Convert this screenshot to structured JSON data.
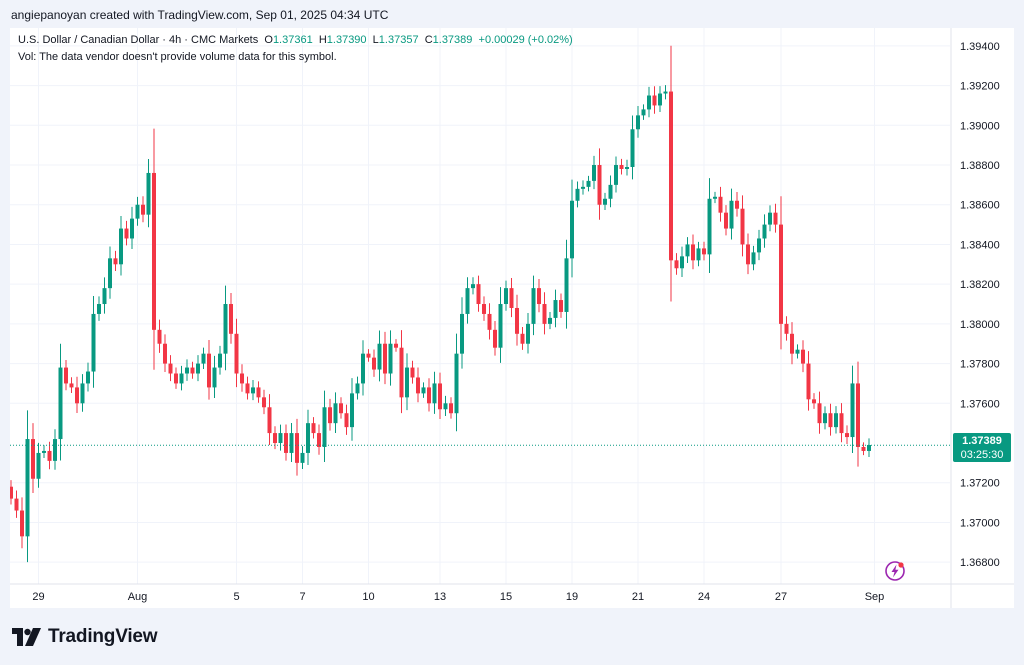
{
  "header": {
    "text": "angiepanoyan created with TradingView.com, Sep 01, 2025 04:34 UTC"
  },
  "legend": {
    "symbol": "U.S. Dollar / Canadian Dollar · 4h · CMC Markets",
    "o_label": "O",
    "o": "1.37361",
    "h_label": "H",
    "h": "1.37390",
    "l_label": "L",
    "l": "1.37357",
    "c_label": "C",
    "c": "1.37389",
    "change": "+0.00029 (+0.02%)",
    "vol_note": "Vol: The data vendor doesn't provide volume data for this symbol."
  },
  "price_tag": {
    "price": "1.37389",
    "countdown": "03:25:30"
  },
  "colors": {
    "up": "#089981",
    "down": "#f23645",
    "grid": "#f0f3fa",
    "text": "#131722",
    "accent_icon": "#9c27b0"
  },
  "logo": {
    "text": "TradingView",
    "icon": "tradingview-logo-icon"
  },
  "chart_data": {
    "type": "candlestick",
    "title": "U.S. Dollar / Canadian Dollar · 4h · CMC Markets",
    "timeframe": "4h",
    "ylim": [
      1.3669,
      1.3949
    ],
    "yticks": [
      "1.36800",
      "1.37000",
      "1.37200",
      "1.37600",
      "1.37800",
      "1.38000",
      "1.38200",
      "1.38400",
      "1.38600",
      "1.38800",
      "1.39000",
      "1.39200",
      "1.39400"
    ],
    "xticks": [
      {
        "label": "29",
        "index": 5
      },
      {
        "label": "Aug",
        "index": 23
      },
      {
        "label": "5",
        "index": 41
      },
      {
        "label": "7",
        "index": 53
      },
      {
        "label": "10",
        "index": 65
      },
      {
        "label": "13",
        "index": 78
      },
      {
        "label": "15",
        "index": 90
      },
      {
        "label": "19",
        "index": 102
      },
      {
        "label": "21",
        "index": 114
      },
      {
        "label": "24",
        "index": 126
      },
      {
        "label": "27",
        "index": 140
      },
      {
        "label": "Sep",
        "index": 157
      }
    ],
    "last_price": 1.37389,
    "closes": [
      1.3712,
      1.3706,
      1.3693,
      1.3742,
      1.3722,
      1.3735,
      1.3736,
      1.3731,
      1.3742,
      1.3778,
      1.377,
      1.3768,
      1.376,
      1.377,
      1.3776,
      1.3805,
      1.381,
      1.3818,
      1.3833,
      1.383,
      1.3848,
      1.3843,
      1.3853,
      1.386,
      1.3855,
      1.3876,
      1.3797,
      1.379,
      1.378,
      1.3775,
      1.377,
      1.3775,
      1.3778,
      1.3775,
      1.378,
      1.3785,
      1.3768,
      1.3778,
      1.3785,
      1.381,
      1.3795,
      1.3775,
      1.377,
      1.3765,
      1.3768,
      1.3763,
      1.3758,
      1.3745,
      1.374,
      1.3745,
      1.3735,
      1.3745,
      1.373,
      1.3735,
      1.375,
      1.3745,
      1.3738,
      1.3758,
      1.375,
      1.376,
      1.3755,
      1.3748,
      1.3765,
      1.377,
      1.3785,
      1.3783,
      1.3777,
      1.379,
      1.3775,
      1.379,
      1.3788,
      1.3763,
      1.3778,
      1.3773,
      1.3765,
      1.3768,
      1.376,
      1.377,
      1.3757,
      1.376,
      1.3755,
      1.3785,
      1.3805,
      1.3818,
      1.382,
      1.381,
      1.3805,
      1.3797,
      1.3788,
      1.381,
      1.3818,
      1.3808,
      1.3795,
      1.379,
      1.38,
      1.3818,
      1.381,
      1.38,
      1.3803,
      1.3812,
      1.3806,
      1.3833,
      1.3862,
      1.3868,
      1.3869,
      1.3872,
      1.388,
      1.386,
      1.3863,
      1.387,
      1.388,
      1.3878,
      1.3879,
      1.3898,
      1.3905,
      1.3908,
      1.3915,
      1.391,
      1.3916,
      1.3917,
      1.3832,
      1.3828,
      1.3834,
      1.384,
      1.3832,
      1.3838,
      1.3835,
      1.3863,
      1.3864,
      1.3856,
      1.3848,
      1.3862,
      1.3858,
      1.384,
      1.383,
      1.3836,
      1.3843,
      1.385,
      1.3856,
      1.385,
      1.38,
      1.3795,
      1.3785,
      1.3787,
      1.378,
      1.3762,
      1.376,
      1.375,
      1.3755,
      1.3748,
      1.3755,
      1.3745,
      1.3743,
      1.377,
      1.3738,
      1.3736,
      1.3739
    ]
  }
}
